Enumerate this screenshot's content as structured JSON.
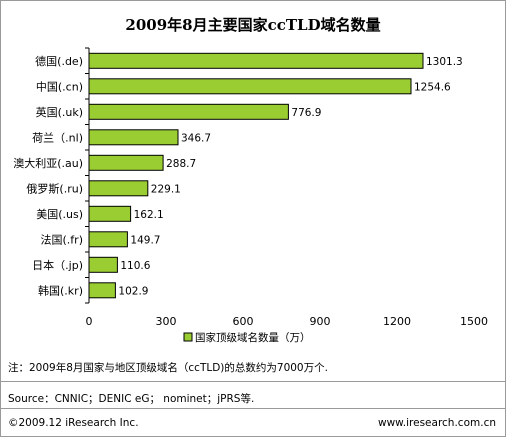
{
  "chart_data": {
    "type": "bar",
    "orientation": "horizontal",
    "title": "2009年8月主要国家ccTLD域名数量",
    "categories": [
      "德国(.de)",
      "中国(.cn)",
      "英国(.uk)",
      "荷兰（.nl)",
      "澳大利亚(.au)",
      "俄罗斯(.ru)",
      "美国(.us)",
      "法国(.fr)",
      "日本（.jp)",
      "韩国(.kr)"
    ],
    "values": [
      1301.3,
      1254.6,
      776.9,
      346.7,
      288.7,
      229.1,
      162.1,
      149.7,
      110.6,
      102.9
    ],
    "value_labels": [
      "1301.3",
      "1254.6",
      "776.9",
      "346.7",
      "288.7",
      "229.1",
      "162.1",
      "149.7",
      "110.6",
      "102.9"
    ],
    "x_ticks": [
      0,
      300,
      600,
      900,
      1200,
      1500
    ],
    "xlim": [
      0,
      1500
    ],
    "legend": "国家顶级域名数量（万）",
    "legend_position": "bottom",
    "grid": false,
    "bar_color": "#9ACD32",
    "bar_edge_color": "#000000"
  },
  "footer": {
    "note": "注：2009年8月国家与地区顶级域名（ccTLD)的总数约为7000万个.",
    "source": "Source：CNNIC；DENIC eG；  nominet；jPRS等.",
    "copyright": "©2009.12 iResearch Inc.",
    "website": "www.iresearch.com.cn"
  }
}
